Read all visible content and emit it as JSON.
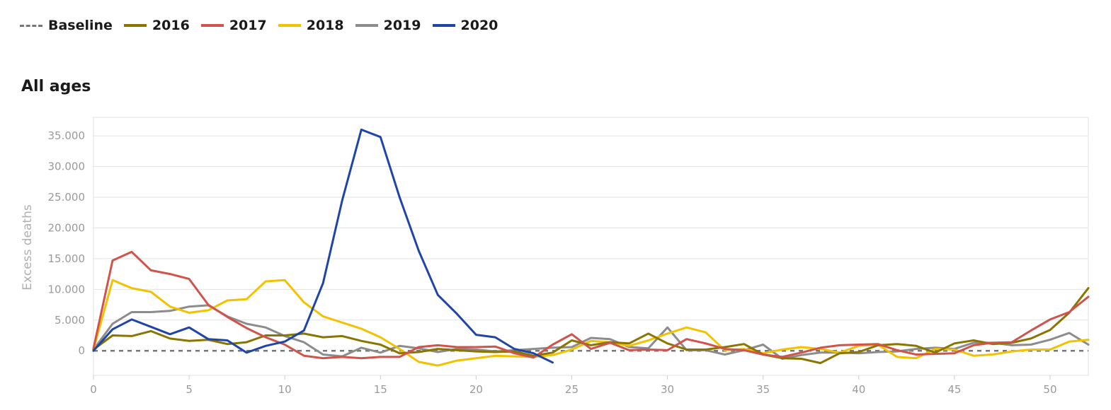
{
  "legend": [
    {
      "label": "Baseline",
      "color": "#777777",
      "style": "dashed"
    },
    {
      "label": "2016",
      "color": "#8a7500",
      "style": "solid"
    },
    {
      "label": "2017",
      "color": "#d0534c",
      "style": "solid"
    },
    {
      "label": "2018",
      "color": "#f2c200",
      "style": "solid"
    },
    {
      "label": "2019",
      "color": "#8c8c8c",
      "style": "solid"
    },
    {
      "label": "2020",
      "color": "#1f45a8",
      "style": "solid"
    }
  ],
  "chart_data": {
    "type": "line",
    "title": "All ages",
    "xlabel": "",
    "ylabel": "Excess deaths",
    "xlim": [
      0,
      52
    ],
    "ylim": [
      -4000,
      38000
    ],
    "xticks": [
      0,
      5,
      10,
      15,
      20,
      25,
      30,
      35,
      40,
      45,
      50
    ],
    "xtick_labels": [
      "0",
      "5",
      "10",
      "15",
      "20",
      "25",
      "30",
      "35",
      "40",
      "45",
      "50"
    ],
    "yticks": [
      0,
      5000,
      10000,
      15000,
      20000,
      25000,
      30000,
      35000
    ],
    "ytick_labels": [
      "0",
      "5.000",
      "10.000",
      "15.000",
      "20.000",
      "25.000",
      "30.000",
      "35.000"
    ],
    "grid": true,
    "legend_position": "top-left",
    "baseline": {
      "name": "Baseline",
      "value": 0,
      "color": "#777777"
    },
    "series": [
      {
        "name": "2019",
        "color": "#8c8c8c",
        "values": [
          [
            0,
            200
          ],
          [
            1,
            4400
          ],
          [
            2,
            6300
          ],
          [
            3,
            6300
          ],
          [
            4,
            6500
          ],
          [
            5,
            7200
          ],
          [
            6,
            7400
          ],
          [
            7,
            5600
          ],
          [
            8,
            4400
          ],
          [
            9,
            3800
          ],
          [
            10,
            2400
          ],
          [
            11,
            1400
          ],
          [
            12,
            -600
          ],
          [
            13,
            -900
          ],
          [
            14,
            500
          ],
          [
            15,
            -300
          ],
          [
            16,
            800
          ],
          [
            17,
            400
          ],
          [
            18,
            -200
          ],
          [
            19,
            300
          ],
          [
            20,
            200
          ],
          [
            21,
            -100
          ],
          [
            22,
            100
          ],
          [
            23,
            300
          ],
          [
            24,
            500
          ],
          [
            25,
            600
          ],
          [
            26,
            2100
          ],
          [
            27,
            1900
          ],
          [
            28,
            600
          ],
          [
            29,
            400
          ],
          [
            30,
            3800
          ],
          [
            31,
            100
          ],
          [
            32,
            100
          ],
          [
            33,
            -600
          ],
          [
            34,
            100
          ],
          [
            35,
            1000
          ],
          [
            36,
            -1300
          ],
          [
            37,
            -700
          ],
          [
            38,
            -300
          ],
          [
            39,
            -300
          ],
          [
            40,
            -400
          ],
          [
            41,
            -200
          ],
          [
            42,
            -100
          ],
          [
            43,
            300
          ],
          [
            44,
            500
          ],
          [
            45,
            300
          ],
          [
            46,
            1300
          ],
          [
            47,
            1300
          ],
          [
            48,
            900
          ],
          [
            49,
            1000
          ],
          [
            50,
            1800
          ],
          [
            51,
            2900
          ],
          [
            52,
            1000
          ]
        ]
      },
      {
        "name": "2018",
        "color": "#f2c200",
        "values": [
          [
            0,
            200
          ],
          [
            1,
            11500
          ],
          [
            2,
            10200
          ],
          [
            3,
            9600
          ],
          [
            4,
            7200
          ],
          [
            5,
            6200
          ],
          [
            6,
            6600
          ],
          [
            7,
            8200
          ],
          [
            8,
            8400
          ],
          [
            9,
            11300
          ],
          [
            10,
            11500
          ],
          [
            11,
            7900
          ],
          [
            12,
            5600
          ],
          [
            13,
            4600
          ],
          [
            14,
            3600
          ],
          [
            15,
            2200
          ],
          [
            16,
            300
          ],
          [
            17,
            -1800
          ],
          [
            18,
            -2400
          ],
          [
            19,
            -1600
          ],
          [
            20,
            -1200
          ],
          [
            21,
            -800
          ],
          [
            22,
            -900
          ],
          [
            23,
            -1000
          ],
          [
            24,
            -700
          ],
          [
            25,
            200
          ],
          [
            26,
            1600
          ],
          [
            27,
            1400
          ],
          [
            28,
            800
          ],
          [
            29,
            1700
          ],
          [
            30,
            2800
          ],
          [
            31,
            3800
          ],
          [
            32,
            3000
          ],
          [
            33,
            100
          ],
          [
            34,
            300
          ],
          [
            35,
            -400
          ],
          [
            36,
            200
          ],
          [
            37,
            600
          ],
          [
            38,
            300
          ],
          [
            39,
            -300
          ],
          [
            40,
            800
          ],
          [
            41,
            1000
          ],
          [
            42,
            -1000
          ],
          [
            43,
            -1200
          ],
          [
            44,
            300
          ],
          [
            45,
            200
          ],
          [
            46,
            -800
          ],
          [
            47,
            -600
          ],
          [
            48,
            -100
          ],
          [
            49,
            200
          ],
          [
            50,
            200
          ],
          [
            51,
            1500
          ],
          [
            52,
            1800
          ]
        ]
      },
      {
        "name": "2016",
        "color": "#8a7500",
        "values": [
          [
            0,
            200
          ],
          [
            1,
            2500
          ],
          [
            2,
            2400
          ],
          [
            3,
            3200
          ],
          [
            4,
            2000
          ],
          [
            5,
            1600
          ],
          [
            6,
            1800
          ],
          [
            7,
            1100
          ],
          [
            8,
            1400
          ],
          [
            9,
            2500
          ],
          [
            10,
            2500
          ],
          [
            11,
            2800
          ],
          [
            12,
            2200
          ],
          [
            13,
            2400
          ],
          [
            14,
            1600
          ],
          [
            15,
            1000
          ],
          [
            16,
            -400
          ],
          [
            17,
            -200
          ],
          [
            18,
            300
          ],
          [
            19,
            100
          ],
          [
            20,
            -100
          ],
          [
            21,
            -200
          ],
          [
            22,
            -100
          ],
          [
            23,
            -800
          ],
          [
            24,
            -300
          ],
          [
            25,
            1700
          ],
          [
            26,
            900
          ],
          [
            27,
            1400
          ],
          [
            28,
            1200
          ],
          [
            29,
            2800
          ],
          [
            30,
            1200
          ],
          [
            31,
            200
          ],
          [
            32,
            200
          ],
          [
            33,
            600
          ],
          [
            34,
            1100
          ],
          [
            35,
            -600
          ],
          [
            36,
            -1200
          ],
          [
            37,
            -1300
          ],
          [
            38,
            -2000
          ],
          [
            39,
            -400
          ],
          [
            40,
            -200
          ],
          [
            41,
            900
          ],
          [
            42,
            1100
          ],
          [
            43,
            800
          ],
          [
            44,
            -300
          ],
          [
            45,
            1200
          ],
          [
            46,
            1700
          ],
          [
            47,
            1100
          ],
          [
            48,
            1300
          ],
          [
            49,
            2000
          ],
          [
            50,
            3400
          ],
          [
            51,
            6200
          ],
          [
            52,
            10200
          ]
        ]
      },
      {
        "name": "2017",
        "color": "#d0534c",
        "values": [
          [
            0,
            400
          ],
          [
            1,
            14700
          ],
          [
            2,
            16100
          ],
          [
            3,
            13100
          ],
          [
            4,
            12500
          ],
          [
            5,
            11700
          ],
          [
            6,
            7500
          ],
          [
            7,
            5500
          ],
          [
            8,
            3700
          ],
          [
            9,
            2200
          ],
          [
            10,
            1000
          ],
          [
            11,
            -800
          ],
          [
            12,
            -1200
          ],
          [
            13,
            -1000
          ],
          [
            14,
            -1200
          ],
          [
            15,
            -1000
          ],
          [
            16,
            -1000
          ],
          [
            17,
            600
          ],
          [
            18,
            900
          ],
          [
            19,
            600
          ],
          [
            20,
            600
          ],
          [
            21,
            700
          ],
          [
            22,
            -400
          ],
          [
            23,
            -1100
          ],
          [
            24,
            1000
          ],
          [
            25,
            2700
          ],
          [
            26,
            300
          ],
          [
            27,
            1300
          ],
          [
            28,
            100
          ],
          [
            29,
            200
          ],
          [
            30,
            100
          ],
          [
            31,
            1900
          ],
          [
            32,
            1200
          ],
          [
            33,
            300
          ],
          [
            34,
            100
          ],
          [
            35,
            -600
          ],
          [
            36,
            -1000
          ],
          [
            37,
            -300
          ],
          [
            38,
            500
          ],
          [
            39,
            900
          ],
          [
            40,
            1000
          ],
          [
            41,
            1100
          ],
          [
            42,
            100
          ],
          [
            43,
            -600
          ],
          [
            44,
            -500
          ],
          [
            45,
            -400
          ],
          [
            46,
            900
          ],
          [
            47,
            1300
          ],
          [
            48,
            1400
          ],
          [
            49,
            3300
          ],
          [
            50,
            5100
          ],
          [
            51,
            6300
          ],
          [
            52,
            8800
          ]
        ]
      },
      {
        "name": "2020",
        "color": "#1f45a8",
        "values": [
          [
            0,
            0
          ],
          [
            1,
            3500
          ],
          [
            2,
            5100
          ],
          [
            3,
            3900
          ],
          [
            4,
            2700
          ],
          [
            5,
            3800
          ],
          [
            6,
            1900
          ],
          [
            7,
            1700
          ],
          [
            8,
            -300
          ],
          [
            9,
            800
          ],
          [
            10,
            1500
          ],
          [
            11,
            3300
          ],
          [
            12,
            11000
          ],
          [
            13,
            24500
          ],
          [
            14,
            36000
          ],
          [
            15,
            34800
          ],
          [
            16,
            25000
          ],
          [
            17,
            16300
          ],
          [
            18,
            9100
          ],
          [
            19,
            6000
          ],
          [
            20,
            2600
          ],
          [
            21,
            2200
          ],
          [
            22,
            300
          ],
          [
            23,
            -400
          ],
          [
            24,
            -1900
          ]
        ]
      }
    ]
  }
}
